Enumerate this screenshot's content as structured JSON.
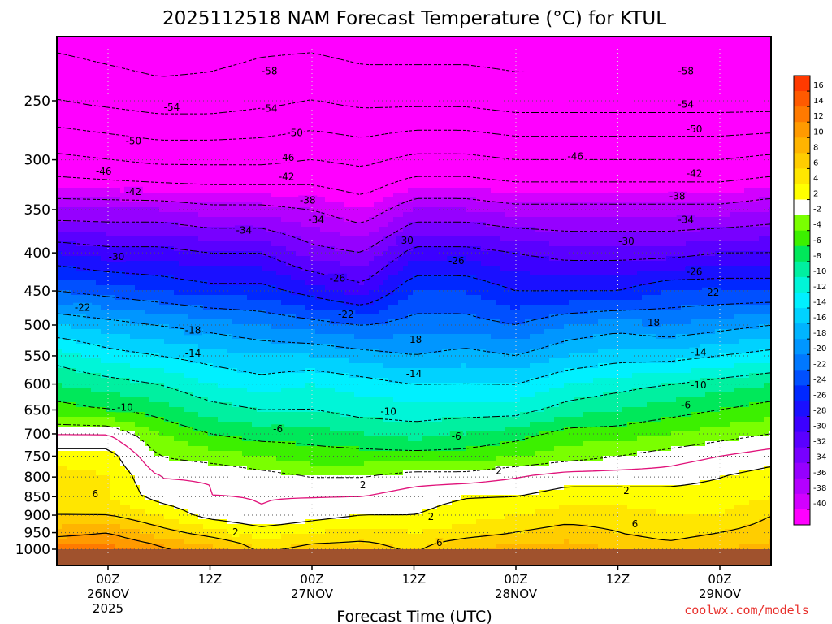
{
  "chart_data": {
    "type": "contour",
    "title": "2025112518 NAM Forecast Temperature (°C) for KTUL",
    "xlabel": "Forecast Time (UTC)",
    "ylabel": "",
    "credit": "coolwx.com/models",
    "y_scale": "log",
    "ylim": [
      1000,
      200
    ],
    "y_ticks": [
      250,
      300,
      350,
      400,
      450,
      500,
      550,
      600,
      650,
      700,
      750,
      800,
      850,
      900,
      950,
      1000
    ],
    "x_range_hours": [
      -6,
      78
    ],
    "x_ticks": [
      {
        "hour": 0,
        "label1": "00Z",
        "label2": "26NOV",
        "label3": "2025"
      },
      {
        "hour": 12,
        "label1": "12Z",
        "label2": "",
        "label3": ""
      },
      {
        "hour": 24,
        "label1": "00Z",
        "label2": "27NOV",
        "label3": ""
      },
      {
        "hour": 36,
        "label1": "12Z",
        "label2": "",
        "label3": ""
      },
      {
        "hour": 48,
        "label1": "00Z",
        "label2": "28NOV",
        "label3": ""
      },
      {
        "hour": 60,
        "label1": "12Z",
        "label2": "",
        "label3": ""
      },
      {
        "hour": 72,
        "label1": "00Z",
        "label2": "29NOV",
        "label3": ""
      }
    ],
    "colorbar": {
      "bands": [
        {
          "min": 16,
          "max": 18,
          "color": "#ff3a00"
        },
        {
          "min": 14,
          "max": 16,
          "color": "#ff5a00"
        },
        {
          "min": 12,
          "max": 14,
          "color": "#ff7a00"
        },
        {
          "min": 10,
          "max": 12,
          "color": "#ff9a00"
        },
        {
          "min": 8,
          "max": 10,
          "color": "#ffb400"
        },
        {
          "min": 6,
          "max": 8,
          "color": "#ffcd00"
        },
        {
          "min": 4,
          "max": 6,
          "color": "#ffe600"
        },
        {
          "min": 2,
          "max": 4,
          "color": "#ffff00"
        },
        {
          "min": -2,
          "max": 2,
          "color": "#ffffff"
        },
        {
          "min": -4,
          "max": -2,
          "color": "#7aff00"
        },
        {
          "min": -6,
          "max": -4,
          "color": "#3cf000"
        },
        {
          "min": -8,
          "max": -6,
          "color": "#00e85a"
        },
        {
          "min": -10,
          "max": -8,
          "color": "#00f0a0"
        },
        {
          "min": -12,
          "max": -10,
          "color": "#00f5d8"
        },
        {
          "min": -14,
          "max": -12,
          "color": "#00f0ff"
        },
        {
          "min": -16,
          "max": -14,
          "color": "#00d2ff"
        },
        {
          "min": -18,
          "max": -16,
          "color": "#00b4ff"
        },
        {
          "min": -20,
          "max": -18,
          "color": "#0096ff"
        },
        {
          "min": -22,
          "max": -20,
          "color": "#0078ff"
        },
        {
          "min": -24,
          "max": -22,
          "color": "#0050ff"
        },
        {
          "min": -26,
          "max": -24,
          "color": "#0028ff"
        },
        {
          "min": -28,
          "max": -26,
          "color": "#1a10ff"
        },
        {
          "min": -30,
          "max": -28,
          "color": "#3c00ff"
        },
        {
          "min": -32,
          "max": -30,
          "color": "#5a00ff"
        },
        {
          "min": -34,
          "max": -32,
          "color": "#7800ff"
        },
        {
          "min": -36,
          "max": -34,
          "color": "#9600ff"
        },
        {
          "min": -38,
          "max": -36,
          "color": "#b400ff"
        },
        {
          "min": -40,
          "max": -38,
          "color": "#d200ff"
        },
        {
          "min": -100,
          "max": -40,
          "color": "#ff00ff"
        }
      ],
      "tick_labels": [
        "16",
        "14",
        "12",
        "10",
        "8",
        "6",
        "4",
        "2",
        "-2",
        "-4",
        "-6",
        "-8",
        "-10",
        "-12",
        "-14",
        "-16",
        "-18",
        "-20",
        "-22",
        "-24",
        "-26",
        "-28",
        "-30",
        "-32",
        "-34",
        "-36",
        "-38",
        "-40"
      ]
    },
    "profile_pressure_levels": [
      1000,
      950,
      900,
      850,
      800,
      750,
      700,
      650,
      600,
      550,
      500,
      450,
      400,
      350,
      300,
      250,
      200
    ],
    "profiles": [
      {
        "hour": -6,
        "temps": [
          13,
          9,
          6,
          6,
          5,
          3,
          0,
          -5,
          -8,
          -11,
          -16,
          -22,
          -28,
          -36,
          -45,
          -54,
          -60
        ]
      },
      {
        "hour": 0,
        "temps": [
          13,
          10,
          6,
          4,
          4,
          3,
          0,
          -6,
          -9,
          -13,
          -17,
          -23,
          -29,
          -36,
          -46,
          -55,
          -61
        ]
      },
      {
        "hour": 6,
        "temps": [
          11,
          7,
          4,
          1,
          0,
          -2,
          -4,
          -7,
          -10,
          -14,
          -18,
          -24,
          -29,
          -36,
          -47,
          -56,
          -62
        ]
      },
      {
        "hour": 12,
        "temps": [
          9,
          5,
          1,
          0,
          0,
          -3,
          -6,
          -9,
          -12,
          -15,
          -19,
          -25,
          -30,
          -37,
          -47,
          -56,
          -61
        ]
      },
      {
        "hour": 18,
        "temps": [
          6,
          3,
          0,
          0,
          -1,
          -4,
          -7,
          -10,
          -13,
          -16,
          -20,
          -25,
          -30,
          -37,
          -47,
          -55,
          -60
        ]
      },
      {
        "hour": 24,
        "temps": [
          7,
          4,
          1,
          0,
          -2,
          -5,
          -7,
          -10,
          -12,
          -16,
          -21,
          -27,
          -33,
          -38,
          -46,
          -54,
          -60
        ]
      },
      {
        "hour": 30,
        "temps": [
          7,
          5,
          2,
          0,
          -2,
          -5,
          -8,
          -11,
          -13,
          -17,
          -22,
          -29,
          -34,
          -40,
          -47,
          -55,
          -61
        ]
      },
      {
        "hour": 36,
        "temps": [
          6,
          4,
          2,
          1,
          -1,
          -5,
          -9,
          -11,
          -14,
          -18,
          -21,
          -24,
          -29,
          -36,
          -45,
          -55,
          -61
        ]
      },
      {
        "hour": 42,
        "temps": [
          8,
          5,
          3,
          2,
          -1,
          -5,
          -8,
          -11,
          -14,
          -17,
          -21,
          -24,
          -29,
          -36,
          -45,
          -55,
          -61
        ]
      },
      {
        "hour": 48,
        "temps": [
          9,
          6,
          4,
          2,
          0,
          -4,
          -7,
          -11,
          -14,
          -18,
          -22,
          -26,
          -30,
          -37,
          -46,
          -56,
          -61
        ]
      },
      {
        "hour": 54,
        "temps": [
          9,
          7,
          5,
          3,
          1,
          -3,
          -5,
          -9,
          -12,
          -16,
          -20,
          -26,
          -31,
          -37,
          -46,
          -56,
          -61
        ]
      },
      {
        "hour": 60,
        "temps": [
          8,
          6,
          5,
          3,
          1,
          -2,
          -5,
          -8,
          -11,
          -15,
          -19,
          -26,
          -31,
          -37,
          -46,
          -56,
          -61
        ]
      },
      {
        "hour": 66,
        "temps": [
          7,
          5,
          4,
          3,
          1,
          -1,
          -4,
          -7,
          -10,
          -15,
          -20,
          -24,
          -31,
          -37,
          -46,
          -56,
          -61
        ]
      },
      {
        "hour": 72,
        "temps": [
          8,
          6,
          4,
          3,
          2,
          0,
          -3,
          -6,
          -9,
          -14,
          -19,
          -24,
          -30,
          -37,
          -46,
          -56,
          -61
        ]
      },
      {
        "hour": 78,
        "temps": [
          9,
          7,
          6,
          4,
          3,
          1,
          -2,
          -5,
          -8,
          -13,
          -18,
          -24,
          -30,
          -36,
          -45,
          -56,
          -61
        ]
      }
    ],
    "contour_labels": [
      {
        "hour": 7.5,
        "p": 255,
        "text": "-54"
      },
      {
        "hour": 19,
        "p": 228,
        "text": "-58"
      },
      {
        "hour": 68,
        "p": 228,
        "text": "-58"
      },
      {
        "hour": 19,
        "p": 256,
        "text": "-54"
      },
      {
        "hour": 68,
        "p": 253,
        "text": "-54"
      },
      {
        "hour": 3,
        "p": 283,
        "text": "-50"
      },
      {
        "hour": 22,
        "p": 276,
        "text": "-50"
      },
      {
        "hour": 69,
        "p": 273,
        "text": "-50"
      },
      {
        "hour": -0.5,
        "p": 311,
        "text": "-46"
      },
      {
        "hour": 21,
        "p": 298,
        "text": "-46"
      },
      {
        "hour": 55,
        "p": 297,
        "text": "-46"
      },
      {
        "hour": 3,
        "p": 331,
        "text": "-42"
      },
      {
        "hour": 21,
        "p": 316,
        "text": "-42"
      },
      {
        "hour": 69,
        "p": 313,
        "text": "-42"
      },
      {
        "hour": 23.5,
        "p": 340,
        "text": "-38"
      },
      {
        "hour": 67,
        "p": 336,
        "text": "-38"
      },
      {
        "hour": 16,
        "p": 373,
        "text": "-34"
      },
      {
        "hour": 24.5,
        "p": 361,
        "text": "-34"
      },
      {
        "hour": 68,
        "p": 361,
        "text": "-34"
      },
      {
        "hour": 1,
        "p": 405,
        "text": "-30"
      },
      {
        "hour": 35,
        "p": 385,
        "text": "-30"
      },
      {
        "hour": 61,
        "p": 386,
        "text": "-30"
      },
      {
        "hour": 27,
        "p": 433,
        "text": "-26"
      },
      {
        "hour": 41,
        "p": 410,
        "text": "-26"
      },
      {
        "hour": 69,
        "p": 424,
        "text": "-26"
      },
      {
        "hour": -3,
        "p": 474,
        "text": "-22"
      },
      {
        "hour": 28,
        "p": 484,
        "text": "-22"
      },
      {
        "hour": 71,
        "p": 452,
        "text": "-22"
      },
      {
        "hour": 10,
        "p": 508,
        "text": "-18"
      },
      {
        "hour": 36,
        "p": 523,
        "text": "-18"
      },
      {
        "hour": 64,
        "p": 496,
        "text": "-18"
      },
      {
        "hour": 10,
        "p": 546,
        "text": "-14"
      },
      {
        "hour": 36,
        "p": 581,
        "text": "-14"
      },
      {
        "hour": 69.5,
        "p": 544,
        "text": "-14"
      },
      {
        "hour": 2,
        "p": 645,
        "text": "-10"
      },
      {
        "hour": 33,
        "p": 653,
        "text": "-10"
      },
      {
        "hour": 69.5,
        "p": 602,
        "text": "-10"
      },
      {
        "hour": 20,
        "p": 690,
        "text": "-6"
      },
      {
        "hour": 41,
        "p": 705,
        "text": "-6"
      },
      {
        "hour": 68,
        "p": 640,
        "text": "-6"
      },
      {
        "hour": 30,
        "p": 820,
        "text": "2"
      },
      {
        "hour": 46,
        "p": 785,
        "text": "2"
      },
      {
        "hour": 61,
        "p": 835,
        "text": "2"
      },
      {
        "hour": 15,
        "p": 949,
        "text": "2"
      },
      {
        "hour": 38,
        "p": 904,
        "text": "2"
      },
      {
        "hour": -1.5,
        "p": 843,
        "text": "6"
      },
      {
        "hour": 39,
        "p": 980,
        "text": "6"
      },
      {
        "hour": 62,
        "p": 925,
        "text": "6"
      }
    ]
  }
}
